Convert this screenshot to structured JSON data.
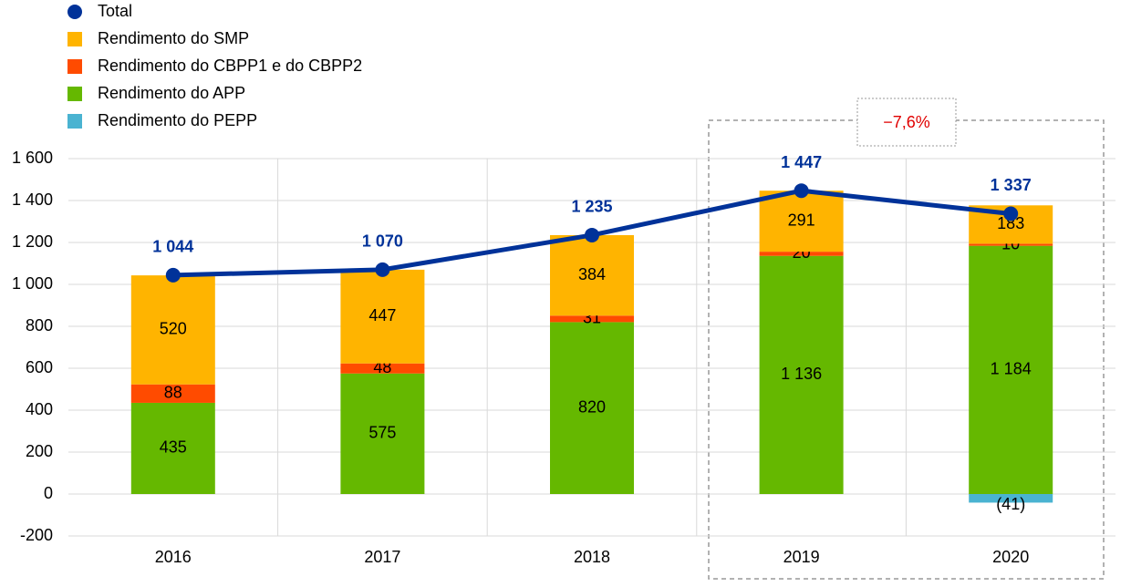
{
  "chart_data": {
    "type": "stacked-bar-line",
    "categories": [
      "2016",
      "2017",
      "2018",
      "2019",
      "2020"
    ],
    "series": [
      {
        "name": "Rendimento do APP",
        "color": "#65b800",
        "values": [
          435,
          575,
          820,
          1136,
          1184
        ],
        "value_labels": [
          "435",
          "575",
          "820",
          "1 136",
          "1 184"
        ]
      },
      {
        "name": "Rendimento do CBPP1 e do CBPP2",
        "color": "#ff4b00",
        "values": [
          88,
          48,
          31,
          20,
          10
        ]
      },
      {
        "name": "Rendimento do SMP",
        "color": "#ffb400",
        "values": [
          520,
          447,
          384,
          291,
          183
        ]
      },
      {
        "name": "Rendimento do PEPP",
        "color": "#4ab3d1",
        "values": [
          null,
          null,
          null,
          null,
          -41
        ],
        "value_labels": [
          null,
          null,
          null,
          null,
          "(41)"
        ]
      }
    ],
    "line": {
      "name": "Total",
      "color": "#003299",
      "values": [
        1044,
        1070,
        1235,
        1447,
        1337
      ],
      "value_labels": [
        "1 044",
        "1 070",
        "1 235",
        "1 447",
        "1 337"
      ]
    },
    "legend_order": [
      "line",
      2,
      1,
      0,
      3
    ],
    "annotation": "−7,6%",
    "ylim": [
      -200,
      1600
    ],
    "yticks": [
      -200,
      0,
      200,
      400,
      600,
      800,
      {
        "value": 1000,
        "label": "1 000"
      },
      {
        "value": 1200,
        "label": "1 200"
      },
      {
        "value": 1400,
        "label": "1 400"
      },
      {
        "value": 1600,
        "label": "1 600"
      }
    ],
    "grid": true
  }
}
